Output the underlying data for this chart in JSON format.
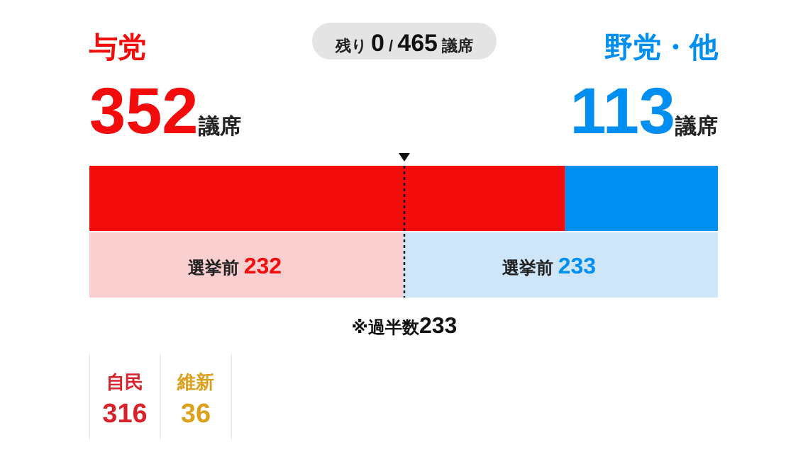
{
  "chart_data": [
    {
      "type": "bar",
      "orientation": "horizontal",
      "stacked": true,
      "categories": [
        null,
        null
      ],
      "xlim": [
        0,
        465
      ],
      "annotations": [
        "残り 0 / 465 議席"
      ],
      "series": [
        {
          "name": "与党",
          "color": "#f20c0c",
          "colors": [
            "#f20c0c",
            "#f9cfd0"
          ],
          "values": [
            352,
            232
          ],
          "value_labels": [
            "352議席",
            "選挙前 232"
          ]
        },
        {
          "name": "野党・他",
          "color": "#008ff0",
          "colors": [
            "#008ff0",
            "#cfe6f9"
          ],
          "values": [
            113,
            233
          ],
          "value_labels": [
            "113議席",
            "選挙前 233"
          ]
        }
      ],
      "ref_lines": [
        {
          "axis": "x",
          "value": 233,
          "label": "※過半数233",
          "line_style": "dotted"
        }
      ]
    },
    {
      "type": "other",
      "categories": [
        "自民",
        "維新"
      ],
      "values": [
        316,
        36
      ],
      "colors": [
        "#d9232b",
        "#dba11c"
      ],
      "data_labels": true
    }
  ]
}
